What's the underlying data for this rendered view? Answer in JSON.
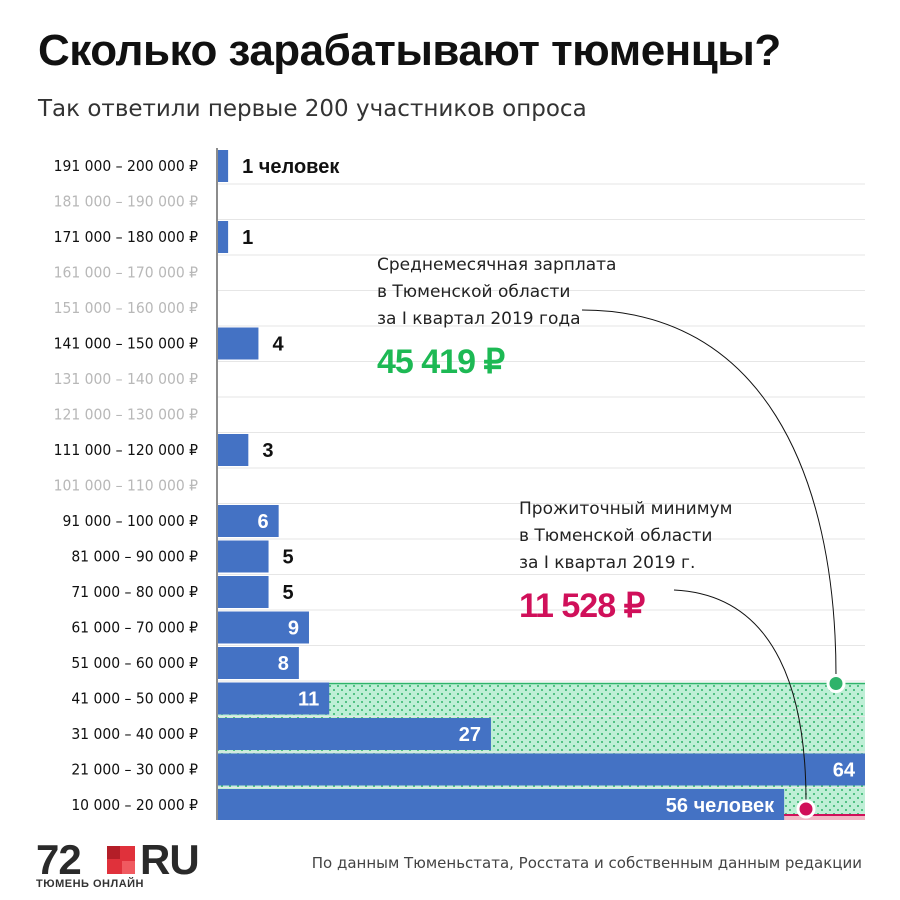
{
  "header": {
    "title": "Сколько зарабатывают тюменцы?",
    "subtitle": "Так ответили первые 200 участников опроса"
  },
  "colors": {
    "bar": "#4472C4",
    "average_zone": "#BEEFD6",
    "average_dots": "#2FB36A",
    "average_text": "#1DB954",
    "minimum_zone": "#F2B8C6",
    "minimum_text": "#D0105A",
    "empty_label": "#B8B8B8",
    "label": "#111111"
  },
  "chart_data": {
    "type": "bar",
    "orientation": "horizontal",
    "title": "Сколько зарабатывают тюменцы?",
    "subtitle": "Так ответили первые 200 участников опроса",
    "categories": [
      "191 000 – 200 000 ₽",
      "181 000 – 190 000 ₽",
      "171 000 – 180 000 ₽",
      "161 000 – 170 000 ₽",
      "151 000 – 160 000 ₽",
      "141 000 – 150 000 ₽",
      "131 000 – 140 000 ₽",
      "121 000 – 130 000 ₽",
      "111 000 – 120 000 ₽",
      "101 000 – 110 000 ₽",
      "91 000 – 100 000 ₽",
      "81 000 – 90 000 ₽",
      "71 000 – 80 000 ₽",
      "61 000 – 70 000 ₽",
      "51 000 – 60 000 ₽",
      "41 000 – 50 000 ₽",
      "31 000 – 40 000 ₽",
      "21 000 – 30 000 ₽",
      "10 000 – 20 000 ₽"
    ],
    "values": [
      1,
      0,
      1,
      0,
      0,
      4,
      0,
      0,
      3,
      0,
      6,
      5,
      5,
      9,
      8,
      11,
      27,
      64,
      56
    ],
    "value_labels": [
      "1 человек",
      "",
      "1",
      "",
      "",
      "4",
      "",
      "",
      "3",
      "",
      "6",
      "5",
      "5",
      "9",
      "8",
      "11",
      "27",
      "64",
      "56 человек"
    ],
    "xlim": [
      0,
      64
    ],
    "annotations": {
      "average": {
        "lines": [
          "Среднемесячная зарплата",
          "в Тюменской области",
          "за I квартал 2019 года"
        ],
        "value": "45 419 ₽",
        "amount": 45419
      },
      "minimum": {
        "lines": [
          "Прожиточный минимум",
          "в Тюменской области",
          "за I квартал 2019 г."
        ],
        "value": "11 528 ₽",
        "amount": 11528
      }
    }
  },
  "footer": {
    "logo_number": "72",
    "logo_domain": "RU",
    "logo_tagline": "ТЮМЕНЬ ОНЛАЙН",
    "source": "По данным Тюменьстата, Росстата и собственным данным редакции"
  }
}
